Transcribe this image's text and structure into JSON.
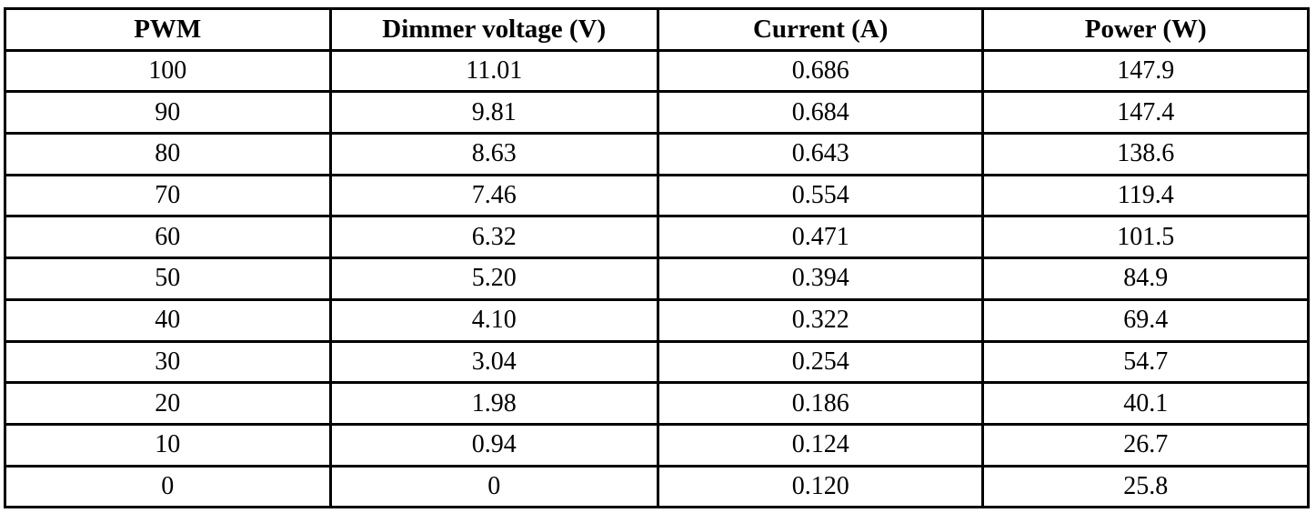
{
  "table": {
    "columns": [
      "PWM",
      "Dimmer voltage (V)",
      "Current (A)",
      "Power (W)"
    ],
    "rows": [
      [
        "100",
        "11.01",
        "0.686",
        "147.9"
      ],
      [
        "90",
        "9.81",
        "0.684",
        "147.4"
      ],
      [
        "80",
        "8.63",
        "0.643",
        "138.6"
      ],
      [
        "70",
        "7.46",
        "0.554",
        "119.4"
      ],
      [
        "60",
        "6.32",
        "0.471",
        "101.5"
      ],
      [
        "50",
        "5.20",
        "0.394",
        "84.9"
      ],
      [
        "40",
        "4.10",
        "0.322",
        "69.4"
      ],
      [
        "30",
        "3.04",
        "0.254",
        "54.7"
      ],
      [
        "20",
        "1.98",
        "0.186",
        "40.1"
      ],
      [
        "10",
        "0.94",
        "0.124",
        "26.7"
      ],
      [
        "0",
        "0",
        "0.120",
        "25.8"
      ]
    ],
    "text_color": "#000000",
    "border_color": "#000000",
    "background_color": "#ffffff"
  },
  "chart_data": {
    "type": "table",
    "title": "",
    "columns": [
      "PWM",
      "Dimmer voltage (V)",
      "Current (A)",
      "Power (W)"
    ],
    "series": [
      {
        "name": "PWM",
        "values": [
          100,
          90,
          80,
          70,
          60,
          50,
          40,
          30,
          20,
          10,
          0
        ]
      },
      {
        "name": "Dimmer voltage (V)",
        "values": [
          11.01,
          9.81,
          8.63,
          7.46,
          6.32,
          5.2,
          4.1,
          3.04,
          1.98,
          0.94,
          0
        ]
      },
      {
        "name": "Current (A)",
        "values": [
          0.686,
          0.684,
          0.643,
          0.554,
          0.471,
          0.394,
          0.322,
          0.254,
          0.186,
          0.124,
          0.12
        ]
      },
      {
        "name": "Power (W)",
        "values": [
          147.9,
          147.4,
          138.6,
          119.4,
          101.5,
          84.9,
          69.4,
          54.7,
          40.1,
          26.7,
          25.8
        ]
      }
    ]
  }
}
